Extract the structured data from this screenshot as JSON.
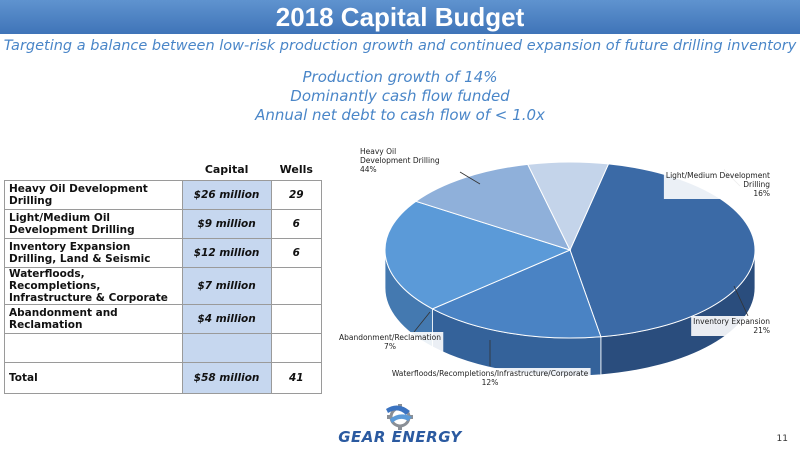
{
  "header": {
    "title": "2018 Capital Budget",
    "tagline": "Targeting a balance between low-risk production growth and continued expansion of future drilling inventory"
  },
  "bullets": [
    "Production growth of 14%",
    "Dominantly cash flow funded",
    "Annual net debt to cash flow of < 1.0x"
  ],
  "table": {
    "headers": {
      "category": "",
      "capital": "Capital",
      "wells": "Wells"
    },
    "rows": [
      {
        "category": "Heavy Oil Development Drilling",
        "capital": "$26 million",
        "wells": "29"
      },
      {
        "category": "Light/Medium Oil Development Drilling",
        "capital": "$9 million",
        "wells": "6"
      },
      {
        "category": "Inventory Expansion Drilling, Land & Seismic",
        "capital": "$12 million",
        "wells": "6"
      },
      {
        "category": "Waterfloods, Recompletions, Infrastructure & Corporate",
        "capital": "$7 million",
        "wells": ""
      },
      {
        "category": "Abandonment and Reclamation",
        "capital": "$4 million",
        "wells": ""
      },
      {
        "category": "",
        "capital": "",
        "wells": ""
      }
    ],
    "total": {
      "category": "Total",
      "capital": "$58 million",
      "wells": "41"
    }
  },
  "chart_data": {
    "type": "pie",
    "slices": [
      {
        "label": "Heavy Oil Development Drilling",
        "pct_label": "44%",
        "value": 44,
        "color": "#3b6aa6",
        "side": "#2a4d7d"
      },
      {
        "label": "Light/Medium Development Drilling",
        "pct_label": "16%",
        "value": 16,
        "color": "#4a83c4",
        "side": "#34629a"
      },
      {
        "label": "Inventory Expansion",
        "pct_label": "21%",
        "value": 21,
        "color": "#5b9ad8",
        "side": "#4479b0"
      },
      {
        "label": "Waterfloods/Recompletions/Infrastructure/Corporate",
        "pct_label": "12%",
        "value": 12,
        "color": "#8fb0da",
        "side": "#6b86aa"
      },
      {
        "label": "Abandonment/Reclamation",
        "pct_label": "7%",
        "value": 7,
        "color": "#c4d4ea",
        "side": "#9aaac0"
      }
    ]
  },
  "footer": {
    "logo_text": "GEAR ENERGY",
    "page_number": "11"
  },
  "colors": {
    "accent": "#4a86c8",
    "title_bar": "#4f86c6",
    "table_highlight": "#c6d7ef"
  }
}
